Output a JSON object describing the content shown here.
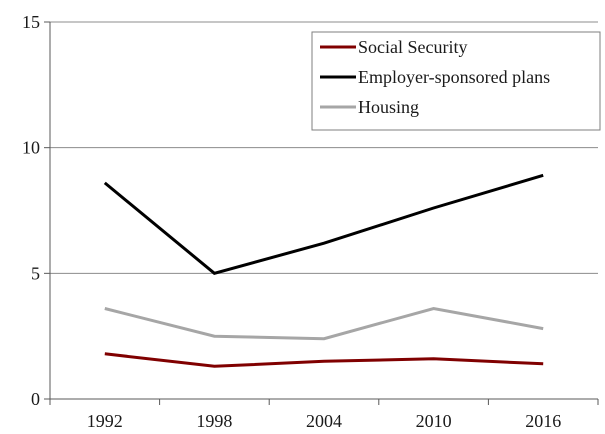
{
  "chart_data": {
    "type": "line",
    "title": "",
    "xlabel": "",
    "ylabel": "",
    "x": [
      "1992",
      "1998",
      "2004",
      "2010",
      "2016"
    ],
    "ylim": [
      0,
      15
    ],
    "yticks": [
      0,
      5,
      10,
      15
    ],
    "grid": "horizontal",
    "legend_position": "top-right",
    "series": [
      {
        "name": "Social Security",
        "color": "#800000",
        "values": [
          1.8,
          1.3,
          1.5,
          1.6,
          1.4
        ]
      },
      {
        "name": "Employer-sponsored plans",
        "color": "#000000",
        "values": [
          8.6,
          5.0,
          6.2,
          7.6,
          8.9
        ]
      },
      {
        "name": "Housing",
        "color": "#a6a6a6",
        "values": [
          3.6,
          2.5,
          2.4,
          3.6,
          2.8
        ]
      }
    ]
  }
}
